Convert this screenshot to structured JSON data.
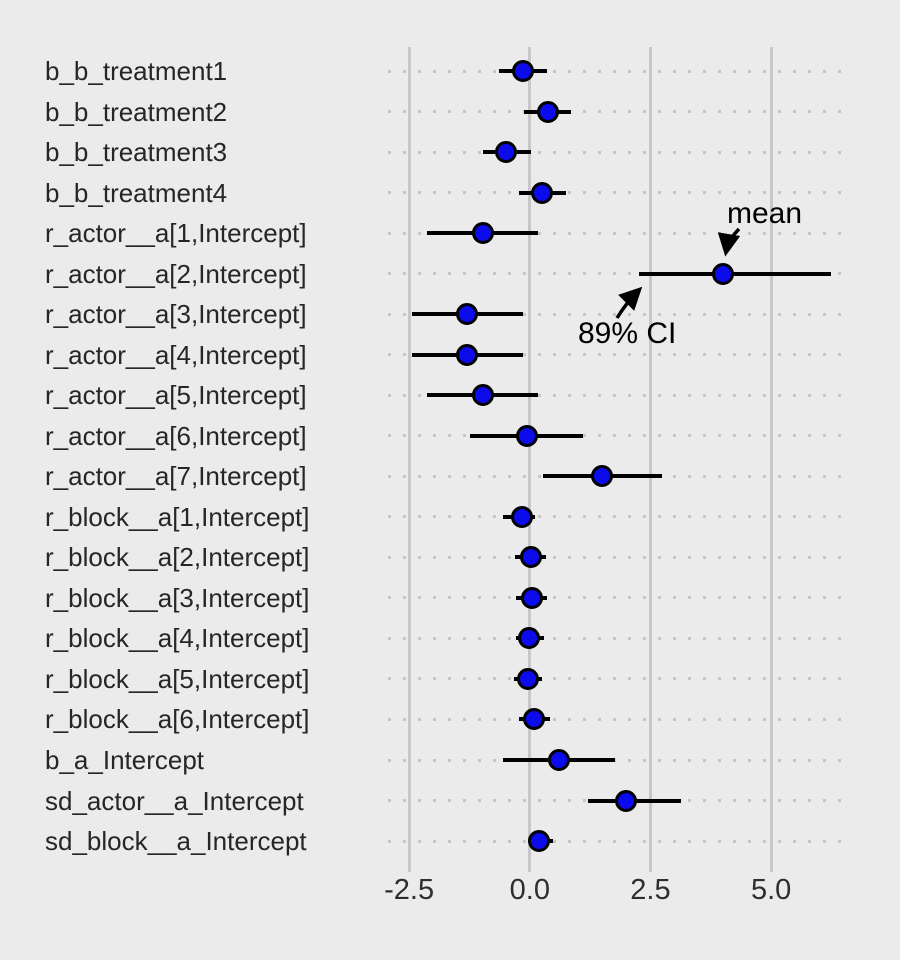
{
  "chart_data": {
    "type": "pointrange",
    "title": "",
    "xlabel": "",
    "ylabel": "",
    "interval_level_label": "89% CI",
    "point_stat_label": "mean",
    "x_ticks": [
      -2.5,
      0.0,
      2.5,
      5.0
    ],
    "x_tick_labels": [
      "-2.5",
      "0.0",
      "2.5",
      "5.0"
    ],
    "xlim": [
      -3.0,
      6.53
    ],
    "grid": "vertical-major-plus-dotted-row-guides",
    "legend_position": "none",
    "parameters": [
      {
        "label": "b_b_treatment1",
        "mean": -0.15,
        "lower": -0.64,
        "upper": 0.35
      },
      {
        "label": "b_b_treatment2",
        "mean": 0.37,
        "lower": -0.12,
        "upper": 0.85
      },
      {
        "label": "b_b_treatment3",
        "mean": -0.5,
        "lower": -0.98,
        "upper": 0.02
      },
      {
        "label": "b_b_treatment4",
        "mean": 0.26,
        "lower": -0.22,
        "upper": 0.75
      },
      {
        "label": "r_actor__a[1,Intercept]",
        "mean": -0.98,
        "lower": -2.14,
        "upper": 0.17
      },
      {
        "label": "r_actor__a[2,Intercept]",
        "mean": 4.0,
        "lower": 2.26,
        "upper": 6.24
      },
      {
        "label": "r_actor__a[3,Intercept]",
        "mean": -1.3,
        "lower": -2.44,
        "upper": -0.14
      },
      {
        "label": "r_actor__a[4,Intercept]",
        "mean": -1.3,
        "lower": -2.44,
        "upper": -0.14
      },
      {
        "label": "r_actor__a[5,Intercept]",
        "mean": -0.98,
        "lower": -2.14,
        "upper": 0.17
      },
      {
        "label": "r_actor__a[6,Intercept]",
        "mean": -0.05,
        "lower": -1.23,
        "upper": 1.1
      },
      {
        "label": "r_actor__a[7,Intercept]",
        "mean": 1.49,
        "lower": 0.28,
        "upper": 2.73
      },
      {
        "label": "r_block__a[1,Intercept]",
        "mean": -0.16,
        "lower": -0.55,
        "upper": 0.1
      },
      {
        "label": "r_block__a[2,Intercept]",
        "mean": 0.02,
        "lower": -0.31,
        "upper": 0.33
      },
      {
        "label": "r_block__a[3,Intercept]",
        "mean": 0.04,
        "lower": -0.29,
        "upper": 0.35
      },
      {
        "label": "r_block__a[4,Intercept]",
        "mean": -0.01,
        "lower": -0.28,
        "upper": 0.29
      },
      {
        "label": "r_block__a[5,Intercept]",
        "mean": -0.04,
        "lower": -0.33,
        "upper": 0.26
      },
      {
        "label": "r_block__a[6,Intercept]",
        "mean": 0.09,
        "lower": -0.22,
        "upper": 0.41
      },
      {
        "label": "b_a_Intercept",
        "mean": 0.6,
        "lower": -0.55,
        "upper": 1.76
      },
      {
        "label": "sd_actor__a_Intercept",
        "mean": 1.99,
        "lower": 1.21,
        "upper": 3.14
      },
      {
        "label": "sd_block__a_Intercept",
        "mean": 0.19,
        "lower": 0.0,
        "upper": 0.48
      }
    ],
    "annotations": [
      {
        "text": "mean",
        "points_to": "posterior mean point of r_actor__a[2,Intercept]"
      },
      {
        "text": "89% CI",
        "points_to": "lower end of interval of r_actor__a[2,Intercept]"
      }
    ]
  },
  "colors": {
    "background": "#EBEBEB",
    "gridline": "#C7C7C7",
    "dotted_guide": "#C6C6C6",
    "interval_line": "#000000",
    "point_fill": "#0B0BEC",
    "point_stroke": "#000000",
    "label_text": "#262626",
    "tick_text": "#2E2E2E",
    "annotation_text": "#000000"
  }
}
